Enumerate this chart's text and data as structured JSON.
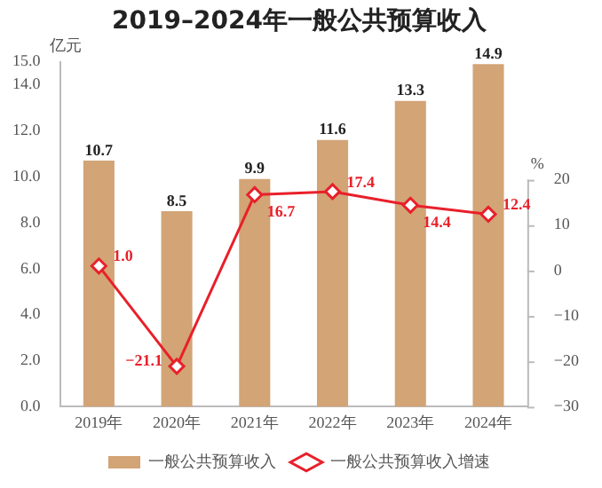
{
  "chart_data": {
    "type": "bar",
    "title": "2019–2024年一般公共预算收入",
    "ylabel": "亿元",
    "y2label": "%",
    "categories": [
      "2019年",
      "2020年",
      "2021年",
      "2022年",
      "2023年",
      "2024年"
    ],
    "series": [
      {
        "name": "一般公共预算收入",
        "color": "#d2a476",
        "values": [
          10.7,
          8.5,
          9.9,
          11.6,
          13.3,
          14.9
        ],
        "value_labels": [
          "10.7",
          "8.5",
          "9.9",
          "11.6",
          "13.3",
          "14.9"
        ]
      },
      {
        "name": "一般公共预算收入增速",
        "type": "line",
        "color": "#e8202a",
        "axis": "y2",
        "marker": "diamond",
        "values": [
          1.0,
          -21.1,
          16.7,
          17.4,
          14.4,
          12.4
        ],
        "value_labels": [
          "1.0",
          "−21.1",
          "16.7",
          "17.4",
          "14.4",
          "12.4"
        ]
      }
    ],
    "ylim": [
      0,
      15
    ],
    "yticks": [
      {
        "value": 0,
        "label": "0.0"
      },
      {
        "value": 2,
        "label": "2.0"
      },
      {
        "value": 4,
        "label": "4.0"
      },
      {
        "value": 6,
        "label": "6.0"
      },
      {
        "value": 8,
        "label": "8.0"
      },
      {
        "value": 10,
        "label": "10.0"
      },
      {
        "value": 12,
        "label": "12.0"
      },
      {
        "value": 14,
        "label": "14.0"
      },
      {
        "value": 15,
        "label": "15.0"
      }
    ],
    "y2lim": [
      -30,
      46
    ],
    "y2ticks": [
      -30,
      -20,
      -10,
      0,
      10,
      20
    ],
    "grid": false,
    "legend": "bottom"
  }
}
